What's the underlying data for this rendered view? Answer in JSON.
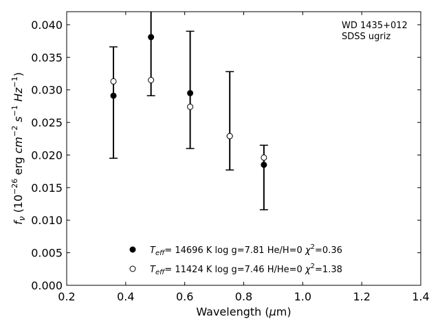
{
  "chart_data": {
    "type": "scatter",
    "xlabel": "Wavelength (μm)",
    "ylabel": "f_ν (10^-26 erg cm^-2 s^-1 Hz^-1)",
    "xlim": [
      0.2,
      1.4
    ],
    "ylim": [
      0.0,
      0.042
    ],
    "xticks": [
      0.2,
      0.4,
      0.6,
      0.8,
      1.0,
      1.2,
      1.4
    ],
    "xtick_labels": [
      "0.2",
      "0.4",
      "0.6",
      "0.8",
      "1.0",
      "1.2",
      "1.4"
    ],
    "yticks": [
      0.0,
      0.005,
      0.01,
      0.015,
      0.02,
      0.025,
      0.03,
      0.035,
      0.04
    ],
    "ytick_labels": [
      "0.000",
      "0.005",
      "0.010",
      "0.015",
      "0.020",
      "0.025",
      "0.030",
      "0.035",
      "0.040"
    ],
    "annotation": [
      "WD 1435+012",
      "SDSS ugriz"
    ],
    "grid": false,
    "legend_placement": "lower-center",
    "observed": {
      "x": [
        0.3585,
        0.4858,
        0.6185,
        0.7527,
        0.8684
      ],
      "y": [
        0.0291,
        0.0381,
        0.0295,
        0.0229,
        0.0185
      ],
      "yerr_low": [
        0.0096,
        0.009,
        0.0085,
        0.0052,
        0.0069
      ],
      "yerr_high": [
        0.0075,
        0.009,
        0.0095,
        0.0099,
        0.003
      ]
    },
    "series": [
      {
        "name": "T_eff= 14696 K  log g=7.81  He/H=0  χ²=0.36",
        "marker": "filled-circle",
        "x": [
          0.3585,
          0.4858,
          0.6185,
          0.7527,
          0.8684
        ],
        "y": [
          0.0291,
          0.0381,
          0.0295,
          0.0229,
          0.0185
        ]
      },
      {
        "name": "T_eff= 11424 K  log g=7.46  H/He=0  χ²=1.38",
        "marker": "open-circle",
        "x": [
          0.3585,
          0.4858,
          0.6185,
          0.7527,
          0.8684
        ],
        "y": [
          0.0313,
          0.0315,
          0.0274,
          0.0229,
          0.0196
        ]
      }
    ],
    "legend": [
      {
        "marker": "filled-circle",
        "teff": "14696 K",
        "logg": "7.81",
        "comp": "He/H=0",
        "chi2": "0.36"
      },
      {
        "marker": "open-circle",
        "teff": "11424 K",
        "logg": "7.46",
        "comp": "H/He=0",
        "chi2": "1.38"
      }
    ]
  }
}
